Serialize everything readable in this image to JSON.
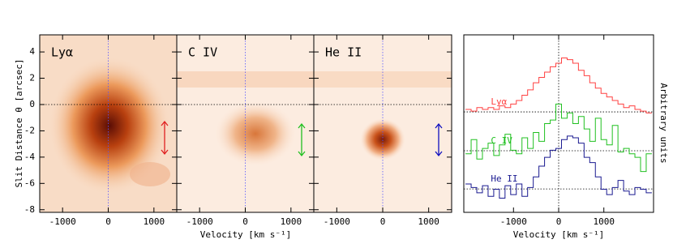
{
  "chart_data": [
    {
      "type": "image",
      "xlabel": "Velocity [km s⁻¹]",
      "ylabel": "Slit Distance θ [arcsec]",
      "xlim": [
        -1500,
        1500
      ],
      "ylim": [
        -8.2,
        5.3
      ],
      "xticks": [
        -1000,
        0,
        1000
      ],
      "yticks": [
        -8,
        -6,
        -4,
        -2,
        0,
        2,
        4
      ],
      "panels": [
        {
          "title": "Lyα",
          "color": "#e02020"
        },
        {
          "title": "C IV",
          "color": "#20c020"
        },
        {
          "title": "He II",
          "color": "#1010c0"
        }
      ]
    },
    {
      "type": "step",
      "xlabel": "Velocity [km s⁻¹]",
      "ylabel": "Arbitrary units",
      "xlim": [
        -2100,
        2100
      ],
      "ylim": [
        0,
        10
      ],
      "xticks": [
        -1000,
        0,
        1000
      ],
      "x": [
        -2000,
        -1875,
        -1750,
        -1625,
        -1500,
        -1375,
        -1250,
        -1125,
        -1000,
        -875,
        -750,
        -625,
        -500,
        -375,
        -250,
        -125,
        0,
        125,
        250,
        375,
        500,
        625,
        750,
        875,
        1000,
        1125,
        1250,
        1375,
        1500,
        1625,
        1750,
        1875,
        2000
      ],
      "series": [
        {
          "name": "Lyα",
          "color": "#ff4040",
          "baseline": 5.66,
          "values": [
            5.8,
            5.7,
            5.9,
            5.8,
            5.9,
            5.8,
            6.0,
            5.9,
            6.1,
            6.3,
            6.6,
            6.9,
            7.3,
            7.6,
            7.9,
            8.2,
            8.4,
            8.7,
            8.6,
            8.4,
            8.0,
            7.7,
            7.3,
            7.0,
            6.7,
            6.5,
            6.3,
            6.1,
            5.9,
            6.0,
            5.8,
            5.7,
            5.6
          ]
        },
        {
          "name": "C IV",
          "color": "#20c020",
          "baseline": 3.47,
          "values": [
            3.3,
            4.1,
            3.0,
            3.6,
            3.9,
            3.2,
            3.8,
            4.4,
            3.5,
            3.3,
            4.2,
            3.6,
            4.5,
            4.0,
            5.0,
            5.2,
            6.1,
            5.3,
            5.6,
            5.0,
            5.4,
            4.7,
            4.0,
            5.3,
            4.1,
            3.8,
            4.9,
            3.4,
            3.6,
            3.3,
            3.1,
            2.3,
            3.3
          ]
        },
        {
          "name": "He II",
          "color": "#1a1a90",
          "baseline": 1.32,
          "values": [
            1.6,
            1.4,
            1.1,
            1.5,
            0.9,
            1.3,
            0.8,
            1.5,
            1.0,
            1.6,
            0.9,
            1.4,
            2.0,
            2.6,
            3.1,
            3.5,
            3.6,
            4.1,
            4.3,
            4.2,
            3.9,
            3.1,
            2.8,
            2.0,
            1.3,
            1.0,
            1.4,
            1.8,
            1.2,
            1.0,
            1.4,
            1.3,
            1.1
          ]
        }
      ]
    }
  ]
}
